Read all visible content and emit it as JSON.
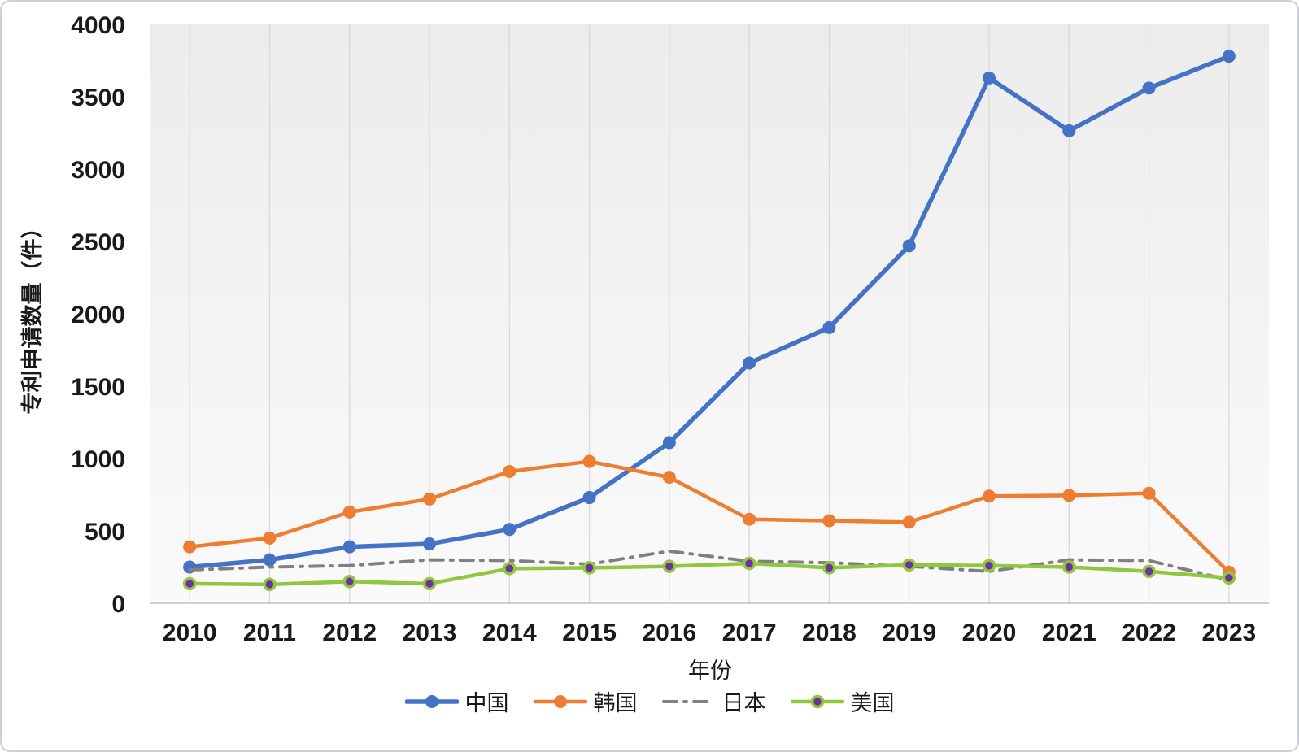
{
  "chart_data": {
    "type": "line",
    "title": "",
    "xlabel": "年份",
    "ylabel": "专利申请数量（件）",
    "categories": [
      "2010",
      "2011",
      "2012",
      "2013",
      "2014",
      "2015",
      "2016",
      "2017",
      "2018",
      "2019",
      "2020",
      "2021",
      "2022",
      "2023"
    ],
    "y_ticks": [
      0,
      500,
      1000,
      1500,
      2000,
      2500,
      3000,
      3500,
      4000
    ],
    "ylim": [
      0,
      4000
    ],
    "grid": "vertical-only",
    "legend_position": "bottom",
    "series": [
      {
        "name": "中国",
        "color": "#4472c4",
        "style": "solid",
        "marker": "circle",
        "line_width": 5.5,
        "values": [
          250,
          300,
          390,
          410,
          510,
          730,
          1110,
          1660,
          1905,
          2470,
          3630,
          3265,
          3560,
          3780
        ]
      },
      {
        "name": "韩国",
        "color": "#ed7d31",
        "style": "solid",
        "marker": "circle",
        "line_width": 4.5,
        "values": [
          390,
          450,
          630,
          720,
          910,
          980,
          870,
          580,
          570,
          560,
          740,
          745,
          760,
          215
        ]
      },
      {
        "name": "日本",
        "color": "#808080",
        "style": "dash-dot",
        "marker": "none",
        "line_width": 4,
        "values": [
          230,
          250,
          260,
          300,
          295,
          270,
          360,
          290,
          280,
          255,
          220,
          300,
          295,
          160
        ]
      },
      {
        "name": "美国",
        "color": "#8fc73e",
        "style": "solid",
        "marker": "circle",
        "marker_fill": "#7030a0",
        "line_width": 4.5,
        "values": [
          135,
          130,
          150,
          135,
          240,
          245,
          255,
          275,
          245,
          265,
          260,
          250,
          220,
          175
        ]
      }
    ]
  }
}
